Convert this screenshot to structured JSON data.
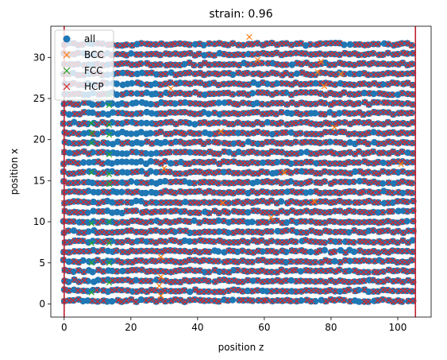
{
  "chart_data": {
    "type": "scatter",
    "title": "strain: 0.96",
    "xlabel": "position z",
    "ylabel": "position x",
    "xlim": [
      -4,
      110
    ],
    "ylim": [
      -1.6,
      33.8
    ],
    "xticks": [
      0,
      20,
      40,
      60,
      80,
      100
    ],
    "yticks": [
      0,
      5,
      10,
      15,
      20,
      25,
      30
    ],
    "grid": false,
    "legend_position": "top-left",
    "vlines": [
      {
        "x": 0,
        "color": "#bf1e2e"
      },
      {
        "x": 105.3,
        "color": "#bf1e2e"
      }
    ],
    "lattice": {
      "x_start": 0,
      "x_end": 105.3,
      "x_step": 1.45,
      "y_start": 0.4,
      "y_end": 32.6,
      "y_step": 1.2
    },
    "series": [
      {
        "name": "all",
        "marker": "circle",
        "color": "#1f77b4"
      },
      {
        "name": "BCC",
        "marker": "x",
        "color": "#ff7f0e",
        "points": [
          [
            55.5,
            32.5
          ],
          [
            58.0,
            29.7
          ],
          [
            77.0,
            29.5
          ],
          [
            76.0,
            28.2
          ],
          [
            83.0,
            28.0
          ],
          [
            78.0,
            26.5
          ],
          [
            32.0,
            26.2
          ],
          [
            81.0,
            21.5
          ],
          [
            47.0,
            21.0
          ],
          [
            30.0,
            16.5
          ],
          [
            66.0,
            16.0
          ],
          [
            101.0,
            17.0
          ],
          [
            75.0,
            12.5
          ],
          [
            47.5,
            12.3
          ],
          [
            62.0,
            10.5
          ],
          [
            29.0,
            5.7
          ],
          [
            29.0,
            3.3
          ],
          [
            28.5,
            2.2
          ],
          [
            29.0,
            1.0
          ]
        ]
      },
      {
        "name": "FCC",
        "marker": "x",
        "color": "#2ca02c",
        "points": [
          [
            8.2,
            22.0
          ],
          [
            8.2,
            20.8
          ],
          [
            8.2,
            19.6
          ],
          [
            8.2,
            16.0
          ],
          [
            8.2,
            9.8
          ],
          [
            8.2,
            7.4
          ],
          [
            8.2,
            5.0
          ],
          [
            8.2,
            1.4
          ],
          [
            13.5,
            25.4
          ],
          [
            13.5,
            24.2
          ],
          [
            13.5,
            21.8
          ],
          [
            13.5,
            20.6
          ],
          [
            13.5,
            18.2
          ],
          [
            13.5,
            15.8
          ],
          [
            13.5,
            14.6
          ],
          [
            13.5,
            10.0
          ],
          [
            13.5,
            7.4
          ],
          [
            13.5,
            5.0
          ],
          [
            13.5,
            2.6
          ]
        ]
      },
      {
        "name": "HCP",
        "marker": "x",
        "color": "#d62728"
      }
    ]
  }
}
